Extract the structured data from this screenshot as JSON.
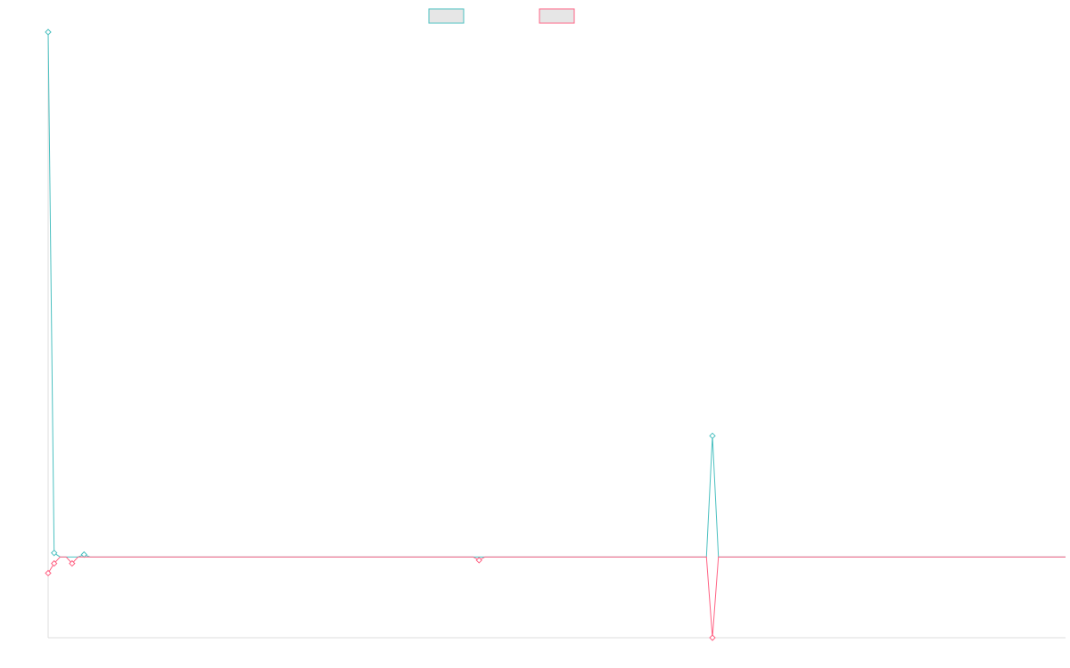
{
  "chart_data": {
    "type": "line",
    "title": "",
    "xlabel": "",
    "ylabel": "",
    "grid": false,
    "legend_position": "top-center",
    "x_points": 171,
    "ylim": [
      -1,
      6.5
    ],
    "colors": {
      "series_1": "#4bc0c0",
      "series_2": "#ff6384",
      "legend_fill": "#e6e6e6"
    },
    "series": [
      {
        "key": "series_1",
        "baseline": 0,
        "points": [
          [
            0,
            6.5
          ],
          [
            1,
            0.05
          ],
          [
            4,
            0
          ],
          [
            6,
            0.03
          ],
          [
            110,
            0
          ],
          [
            111,
            1.5
          ],
          [
            112,
            0
          ]
        ]
      },
      {
        "key": "series_2",
        "baseline": 0,
        "points": [
          [
            0,
            -0.2
          ],
          [
            1,
            -0.08
          ],
          [
            4,
            -0.08
          ],
          [
            72,
            -0.04
          ],
          [
            110,
            0
          ],
          [
            111,
            -1
          ],
          [
            112,
            0
          ]
        ]
      }
    ]
  }
}
